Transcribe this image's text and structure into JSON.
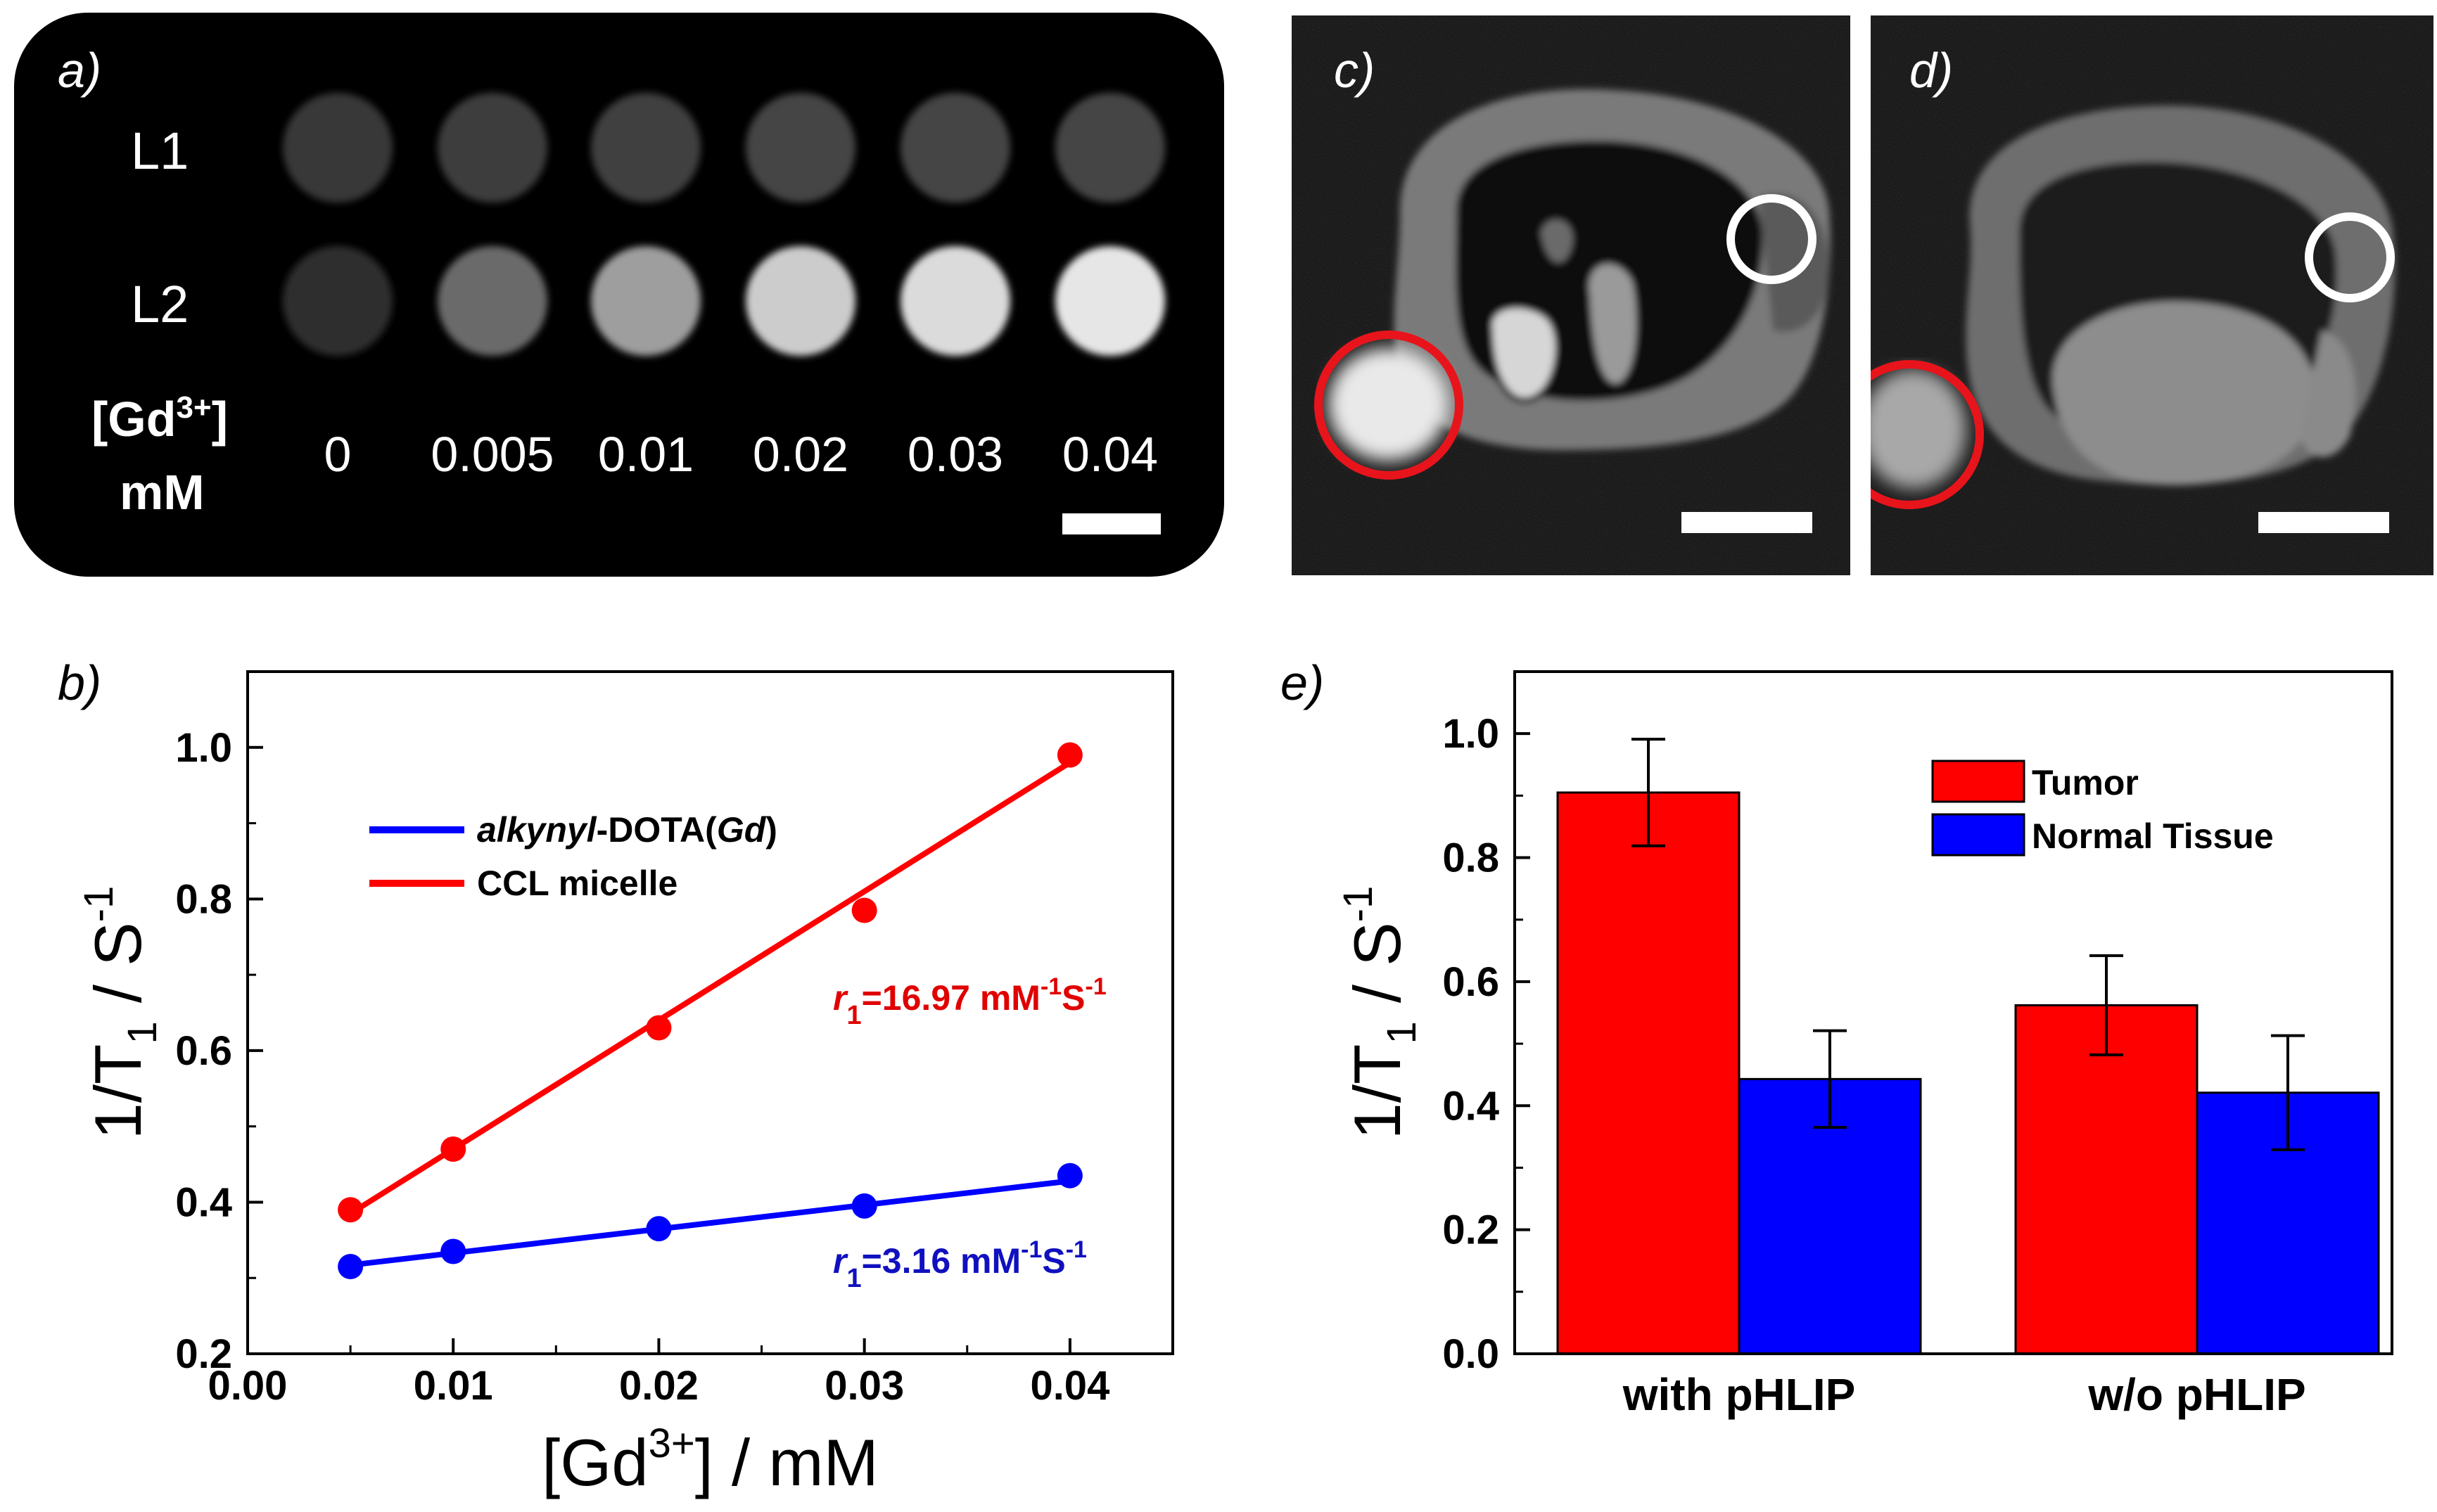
{
  "panel_labels": {
    "a": "a)",
    "b": "b)",
    "c": "c)",
    "d": "d)",
    "e": "e)"
  },
  "panel_a": {
    "rows": [
      {
        "label": "L1",
        "brightness": [
          0.22,
          0.24,
          0.25,
          0.27,
          0.27,
          0.27
        ]
      },
      {
        "label": "L2",
        "brightness": [
          0.18,
          0.42,
          0.62,
          0.8,
          0.86,
          0.9
        ]
      }
    ],
    "conc_header_line1": "[Gd",
    "conc_header_sup": "3+",
    "conc_header_bracket": "]",
    "conc_header_line2": "mM",
    "concentrations": [
      "0",
      "0.005",
      "0.01",
      "0.02",
      "0.03",
      "0.04"
    ]
  },
  "panel_c": {
    "tumor_roi_color": "#e8141b",
    "normal_roi_color": "#ffffff"
  },
  "panel_d": {
    "tumor_roi_color": "#e8141b",
    "normal_roi_color": "#ffffff"
  },
  "colors": {
    "red": "#ff0000",
    "blue": "#0000ff",
    "red_text": "#e00000",
    "blue_text": "#1010c0"
  },
  "chart_data": [
    {
      "type": "scatter",
      "panel": "b",
      "xlabel_main": "[Gd",
      "xlabel_sup": "3+",
      "xlabel_rest": "] / mM",
      "ylabel_main": "1/T",
      "ylabel_sub": "1",
      "ylabel_rest": " / S",
      "ylabel_sup": "-1",
      "xlim": [
        0.0,
        0.045
      ],
      "ylim": [
        0.2,
        1.1
      ],
      "xticks": [
        "0.00",
        "0.01",
        "0.02",
        "0.03",
        "0.04"
      ],
      "yticks": [
        "0.2",
        "0.4",
        "0.6",
        "0.8",
        "1.0"
      ],
      "series": [
        {
          "name_italic": "alkynyl",
          "name_mid": "-DOTA(",
          "name_italic2": "Gd",
          "name_end": ")",
          "color": "#0000ff",
          "x": [
            0.005,
            0.01,
            0.02,
            0.03,
            0.04
          ],
          "y": [
            0.315,
            0.335,
            0.365,
            0.395,
            0.435
          ],
          "fit": {
            "x": [
              0.005,
              0.04
            ],
            "y": [
              0.317,
              0.428
            ]
          },
          "annotation": {
            "r": "r",
            "sub": "1",
            "val": "=3.16 mM",
            "sup1": "-1",
            "unit": "S",
            "sup2": "-1"
          }
        },
        {
          "name": "CCL micelle",
          "color": "#ff0000",
          "x": [
            0.005,
            0.01,
            0.02,
            0.03,
            0.04
          ],
          "y": [
            0.39,
            0.47,
            0.63,
            0.785,
            0.99
          ],
          "fit": {
            "x": [
              0.005,
              0.04
            ],
            "y": [
              0.385,
              0.98
            ]
          },
          "annotation": {
            "r": "r",
            "sub": "1",
            "val": "=16.97 mM",
            "sup1": "-1",
            "unit": "S",
            "sup2": "-1"
          }
        }
      ]
    },
    {
      "type": "bar",
      "panel": "e",
      "categories": [
        "with pHLIP",
        "w/o pHLIP"
      ],
      "ylabel_main": "1/T",
      "ylabel_sub": "1",
      "ylabel_rest": " / S",
      "ylabel_sup": "-1",
      "ylim": [
        0.0,
        1.1
      ],
      "yticks": [
        "0.0",
        "0.2",
        "0.4",
        "0.6",
        "0.8",
        "1.0"
      ],
      "legend_position": "top-right",
      "series": [
        {
          "name": "Tumor",
          "color": "#ff0000",
          "values": [
            0.905,
            0.562
          ],
          "errors": [
            0.086,
            0.08
          ]
        },
        {
          "name": "Normal Tissue",
          "color": "#0000ff",
          "values": [
            0.443,
            0.421
          ],
          "errors": [
            0.078,
            0.092
          ]
        }
      ]
    }
  ]
}
